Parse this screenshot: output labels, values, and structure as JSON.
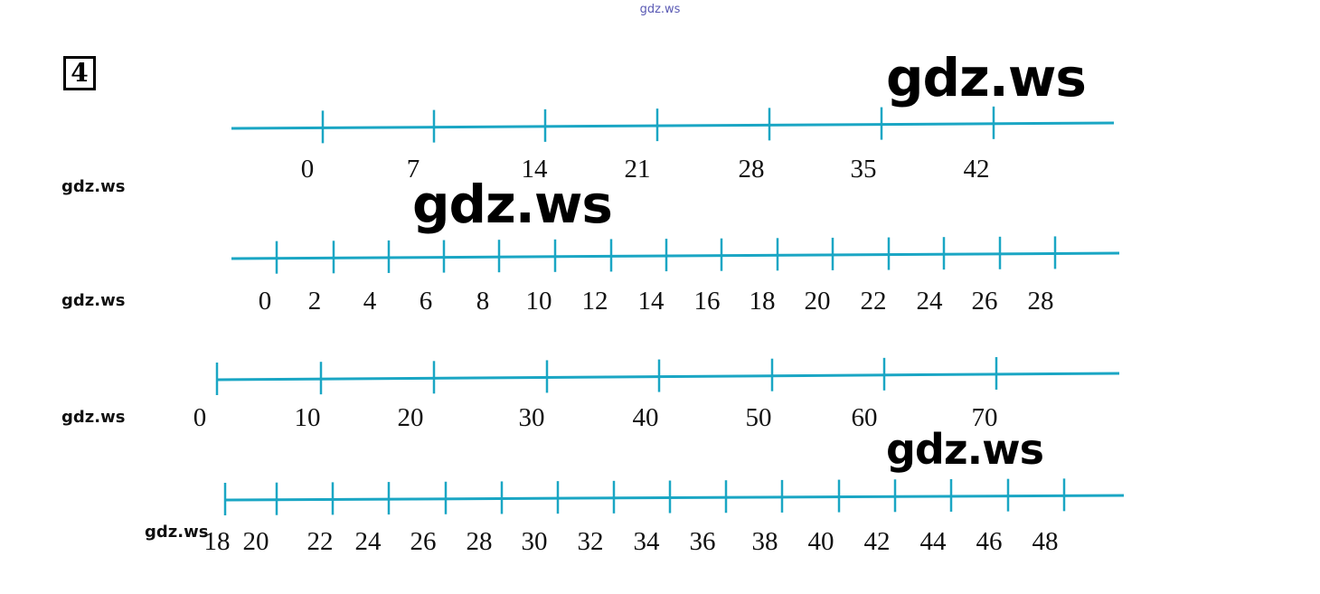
{
  "top_watermark": "gdz.ws",
  "task_number": "4",
  "watermarks": {
    "big": [
      "gdz.ws",
      "gdz.ws",
      "gdz.ws"
    ],
    "side": [
      "gdz.ws",
      "gdz.ws",
      "gdz.ws",
      "gdz.ws"
    ]
  },
  "colors": {
    "line": "#1aa6c4",
    "text": "#111111"
  },
  "number_lines": [
    {
      "labels": [
        "0",
        "7",
        "14",
        "21",
        "28",
        "35",
        "42"
      ]
    },
    {
      "labels": [
        "0",
        "2",
        "4",
        "6",
        "8",
        "10",
        "12",
        "14",
        "16",
        "18",
        "20",
        "22",
        "24",
        "26",
        "28"
      ]
    },
    {
      "labels": [
        "0",
        "10",
        "20",
        "30",
        "40",
        "50",
        "60",
        "70"
      ]
    },
    {
      "labels": [
        "18",
        "20",
        "22",
        "24",
        "26",
        "28",
        "30",
        "32",
        "34",
        "36",
        "38",
        "40",
        "42",
        "44",
        "46",
        "48"
      ]
    }
  ]
}
